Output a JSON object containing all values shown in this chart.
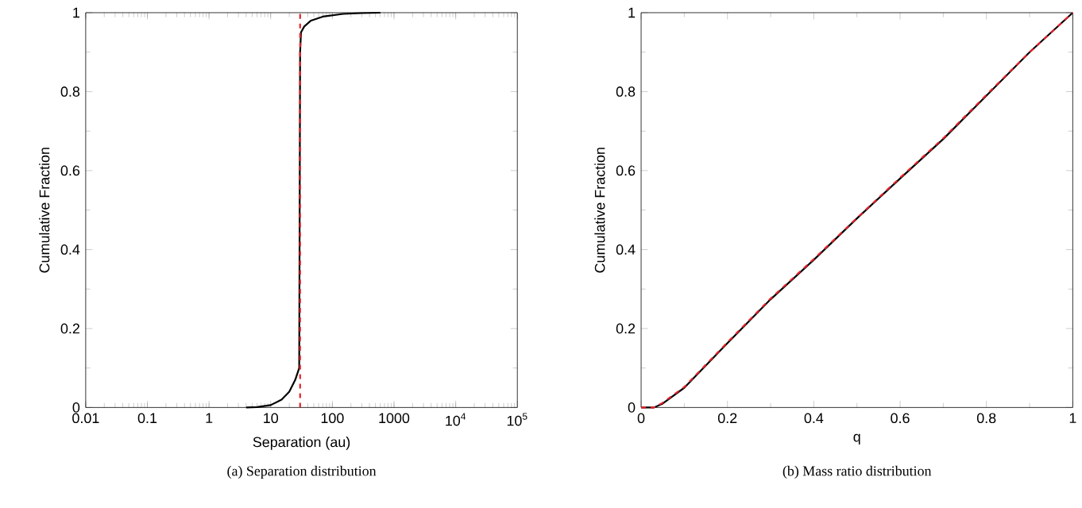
{
  "chart_data": [
    {
      "type": "line",
      "log": "x",
      "xlabel": "Separation (au)",
      "ylabel": "Cumulative Fraction",
      "xlim": [
        0.01,
        100000
      ],
      "ylim": [
        0,
        1
      ],
      "xticks": [
        0.01,
        0.1,
        1,
        10,
        100,
        1000,
        {
          "value": 10000,
          "label": "10$^{4}$"
        },
        {
          "value": 100000,
          "label": "10$^{5}$"
        }
      ],
      "yticks": [
        0,
        0.2,
        0.4,
        0.6,
        0.8,
        1
      ],
      "series": [
        {
          "color": "#000000",
          "line_style": "solid",
          "x": [
            4,
            6,
            10,
            15,
            20,
            25,
            29,
            30,
            31,
            35,
            45,
            70,
            150,
            300,
            600
          ],
          "values": [
            0,
            0.001,
            0.006,
            0.02,
            0.04,
            0.07,
            0.1,
            0.9,
            0.95,
            0.965,
            0.98,
            0.99,
            0.997,
            0.999,
            1
          ]
        }
      ],
      "ref_lines": [
        {
          "axis": "x",
          "value": 30,
          "color": "#e8202a",
          "line_style": "dashed"
        }
      ],
      "annotations": [
        "(a) Separation distribution"
      ]
    },
    {
      "type": "line",
      "xlabel": "q",
      "ylabel": "Cumulative Fraction",
      "xlim": [
        0,
        1
      ],
      "ylim": [
        0,
        1
      ],
      "xticks": [
        0,
        0.2,
        0.4,
        0.6,
        0.8,
        1
      ],
      "yticks": [
        0,
        0.2,
        0.4,
        0.6,
        0.8,
        1
      ],
      "series": [
        {
          "color": "#000000",
          "line_style": "solid",
          "x": [
            0,
            0.03,
            0.05,
            0.1,
            0.2,
            0.3,
            0.4,
            0.5,
            0.6,
            0.7,
            0.8,
            0.9,
            1
          ],
          "values": [
            0,
            0,
            0.01,
            0.05,
            0.163,
            0.274,
            0.374,
            0.479,
            0.58,
            0.68,
            0.79,
            0.9,
            1
          ]
        },
        {
          "color": "#e8202a",
          "line_style": "dashed",
          "x": [
            0,
            0.03,
            0.05,
            0.1,
            0.2,
            0.3,
            0.4,
            0.5,
            0.6,
            0.7,
            0.8,
            0.9,
            1
          ],
          "values": [
            0,
            0,
            0.012,
            0.052,
            0.165,
            0.276,
            0.376,
            0.48,
            0.582,
            0.682,
            0.792,
            0.9,
            1
          ]
        }
      ],
      "annotations": [
        "(b) Mass ratio distribution"
      ]
    }
  ]
}
